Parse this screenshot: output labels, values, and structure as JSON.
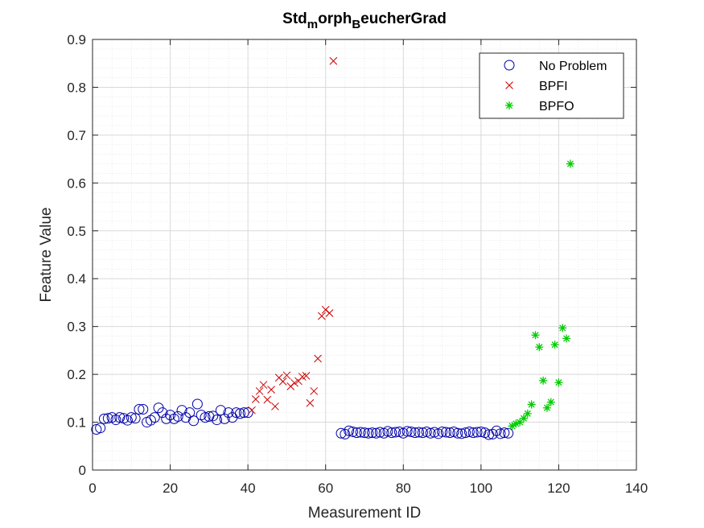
{
  "chart_data": {
    "type": "scatter",
    "title": {
      "base": "Std",
      "sub1": "m",
      "mid": "orph",
      "sub2": "B",
      "tail": "eucherGrad"
    },
    "xlabel": "Measurement ID",
    "ylabel": "Feature Value",
    "xlim": [
      0,
      140
    ],
    "ylim": [
      0,
      0.9
    ],
    "xticks": [
      0,
      20,
      40,
      60,
      80,
      100,
      120,
      140
    ],
    "yticks": [
      0,
      0.1,
      0.2,
      0.3,
      0.4,
      0.5,
      0.6,
      0.7,
      0.8,
      0.9
    ],
    "xtick_labels": [
      "0",
      "20",
      "40",
      "60",
      "80",
      "100",
      "120",
      "140"
    ],
    "ytick_labels": [
      "0",
      "0.1",
      "0.2",
      "0.3",
      "0.4",
      "0.5",
      "0.6",
      "0.7",
      "0.8",
      "0.9"
    ],
    "grid": true,
    "minor_grid": true,
    "legend_position": "top-right",
    "series": [
      {
        "name": "No Problem",
        "marker": "circle",
        "color": "#0000aa",
        "x": [
          1,
          2,
          3,
          4,
          5,
          6,
          7,
          8,
          9,
          10,
          11,
          12,
          13,
          14,
          15,
          16,
          17,
          18,
          19,
          20,
          21,
          22,
          23,
          24,
          25,
          26,
          27,
          28,
          29,
          30,
          31,
          32,
          33,
          34,
          35,
          36,
          37,
          38,
          39,
          40,
          64,
          65,
          66,
          67,
          68,
          69,
          70,
          71,
          72,
          73,
          74,
          75,
          76,
          77,
          78,
          79,
          80,
          81,
          82,
          83,
          84,
          85,
          86,
          87,
          88,
          89,
          90,
          91,
          92,
          93,
          94,
          95,
          96,
          97,
          98,
          99,
          100,
          101,
          102,
          103,
          104,
          105,
          106,
          107
        ],
        "y": [
          0.085,
          0.088,
          0.107,
          0.108,
          0.11,
          0.105,
          0.11,
          0.108,
          0.104,
          0.11,
          0.108,
          0.127,
          0.127,
          0.1,
          0.104,
          0.11,
          0.13,
          0.12,
          0.107,
          0.115,
          0.107,
          0.112,
          0.125,
          0.11,
          0.12,
          0.103,
          0.138,
          0.115,
          0.11,
          0.112,
          0.113,
          0.105,
          0.125,
          0.107,
          0.12,
          0.11,
          0.12,
          0.118,
          0.12,
          0.12,
          0.077,
          0.075,
          0.082,
          0.08,
          0.078,
          0.079,
          0.078,
          0.077,
          0.078,
          0.077,
          0.079,
          0.077,
          0.081,
          0.078,
          0.079,
          0.08,
          0.077,
          0.081,
          0.08,
          0.078,
          0.079,
          0.078,
          0.08,
          0.077,
          0.079,
          0.076,
          0.08,
          0.079,
          0.078,
          0.08,
          0.077,
          0.076,
          0.078,
          0.08,
          0.078,
          0.079,
          0.08,
          0.078,
          0.074,
          0.075,
          0.082,
          0.076,
          0.078,
          0.077
        ]
      },
      {
        "name": "BPFI",
        "marker": "x",
        "color": "#cc0000",
        "x": [
          41,
          42,
          43,
          44,
          45,
          46,
          47,
          48,
          49,
          50,
          51,
          52,
          53,
          54,
          55,
          56,
          57,
          58,
          59,
          60,
          61,
          62
        ],
        "y": [
          0.125,
          0.148,
          0.165,
          0.178,
          0.147,
          0.168,
          0.133,
          0.193,
          0.185,
          0.198,
          0.175,
          0.182,
          0.186,
          0.195,
          0.197,
          0.14,
          0.165,
          0.233,
          0.322,
          0.335,
          0.328,
          0.855
        ]
      },
      {
        "name": "BPFO",
        "marker": "asterisk",
        "color": "#00cc00",
        "x": [
          108,
          109,
          110,
          111,
          112,
          113,
          114,
          115,
          116,
          117,
          118,
          119,
          120,
          121,
          122,
          123
        ],
        "y": [
          0.092,
          0.097,
          0.1,
          0.108,
          0.118,
          0.137,
          0.282,
          0.257,
          0.187,
          0.13,
          0.142,
          0.262,
          0.183,
          0.297,
          0.275,
          0.64
        ]
      }
    ]
  }
}
